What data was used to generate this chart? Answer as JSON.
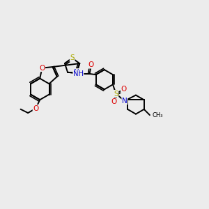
{
  "bg_color": "#ececec",
  "atom_colors": {
    "C": "#000000",
    "N": "#0000cc",
    "O": "#dd0000",
    "S": "#aaaa00",
    "H": "#888888"
  },
  "bond_color": "#000000",
  "bond_width": 1.4,
  "font_size": 7.5
}
